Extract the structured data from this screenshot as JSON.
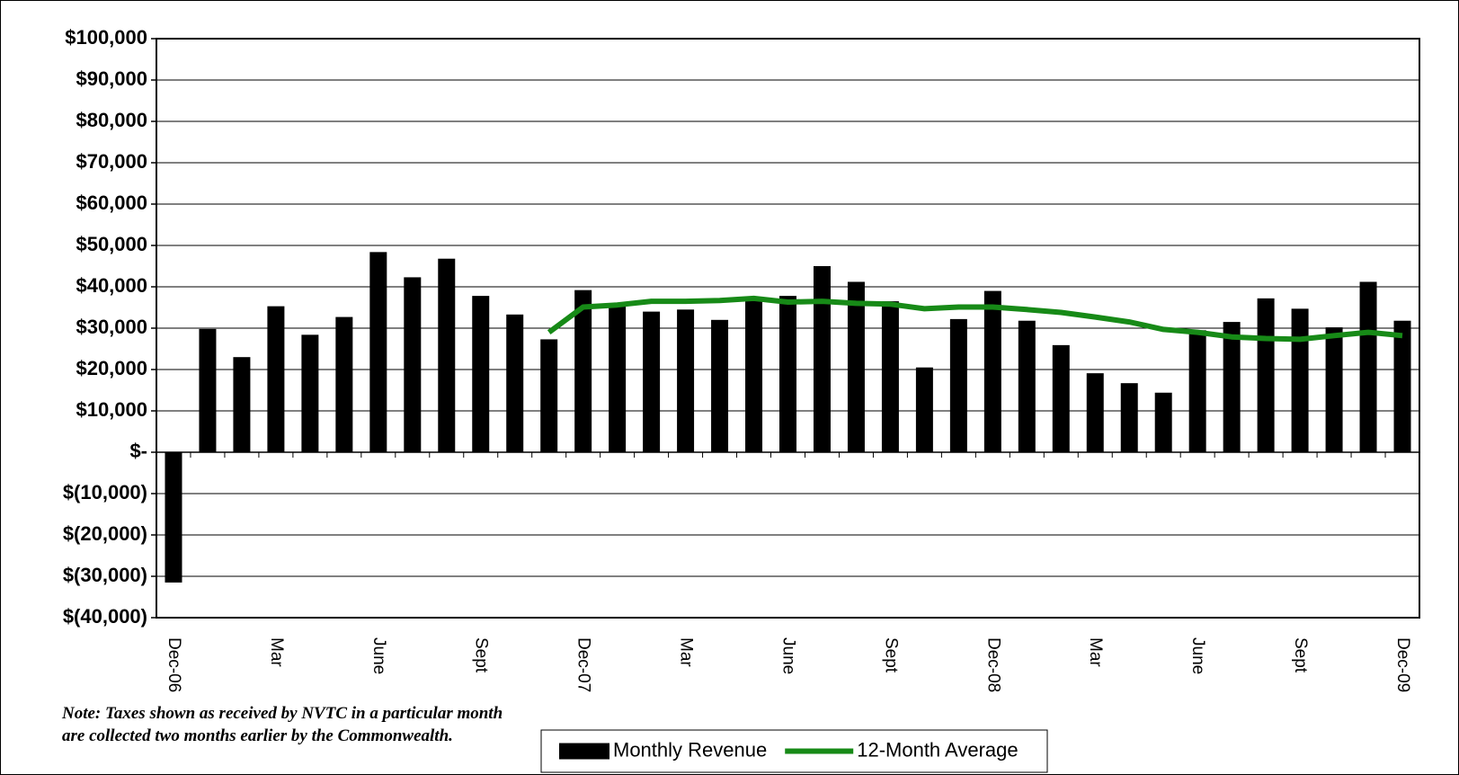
{
  "chart_data": {
    "type": "bar",
    "note": "Note: Taxes shown as received by NVTC in a particular month are collected two months earlier by the Commonwealth.",
    "categories": [
      "Dec-06",
      null,
      null,
      "Mar",
      null,
      null,
      "June",
      null,
      null,
      "Sept",
      null,
      null,
      "Dec-07",
      null,
      null,
      "Mar",
      null,
      null,
      "June",
      null,
      null,
      "Sept",
      null,
      null,
      "Dec-08",
      null,
      null,
      "Mar",
      null,
      null,
      "June",
      null,
      null,
      "Sept",
      null,
      null,
      "Dec-09"
    ],
    "series": [
      {
        "name": "Monthly Revenue",
        "type": "bar",
        "color": "#000000",
        "values": [
          -31500,
          29800,
          23000,
          35300,
          28400,
          32700,
          48400,
          42300,
          46800,
          37800,
          33300,
          27300,
          39200,
          35800,
          34000,
          34500,
          32000,
          36900,
          37800,
          45000,
          41200,
          36500,
          20500,
          32200,
          39000,
          31800,
          25900,
          19100,
          16700,
          14400,
          29500,
          31500,
          37200,
          34700,
          30200,
          41200,
          31800
        ]
      },
      {
        "name": "12-Month Average",
        "type": "line",
        "color": "#178a17",
        "values": [
          null,
          null,
          null,
          null,
          null,
          null,
          null,
          null,
          null,
          null,
          null,
          29000,
          35100,
          35600,
          36500,
          36500,
          36700,
          37200,
          36300,
          36500,
          36000,
          35800,
          34700,
          35100,
          35100,
          34500,
          33800,
          32700,
          31500,
          29700,
          29000,
          27900,
          27500,
          27300,
          28200,
          29000,
          28200
        ]
      }
    ],
    "ylim": [
      -40000,
      100000
    ],
    "yticks": [
      {
        "value": -40000,
        "label": "$(40,000)"
      },
      {
        "value": -30000,
        "label": "$(30,000)"
      },
      {
        "value": -20000,
        "label": "$(20,000)"
      },
      {
        "value": -10000,
        "label": "$(10,000)"
      },
      {
        "value": 0,
        "label": "$-"
      },
      {
        "value": 10000,
        "label": "$10,000"
      },
      {
        "value": 20000,
        "label": "$20,000"
      },
      {
        "value": 30000,
        "label": "$30,000"
      },
      {
        "value": 40000,
        "label": "$40,000"
      },
      {
        "value": 50000,
        "label": "$50,000"
      },
      {
        "value": 60000,
        "label": "$60,000"
      },
      {
        "value": 70000,
        "label": "$70,000"
      },
      {
        "value": 80000,
        "label": "$80,000"
      },
      {
        "value": 90000,
        "label": "$90,000"
      },
      {
        "value": 100000,
        "label": "$100,000"
      }
    ],
    "grid": true
  }
}
